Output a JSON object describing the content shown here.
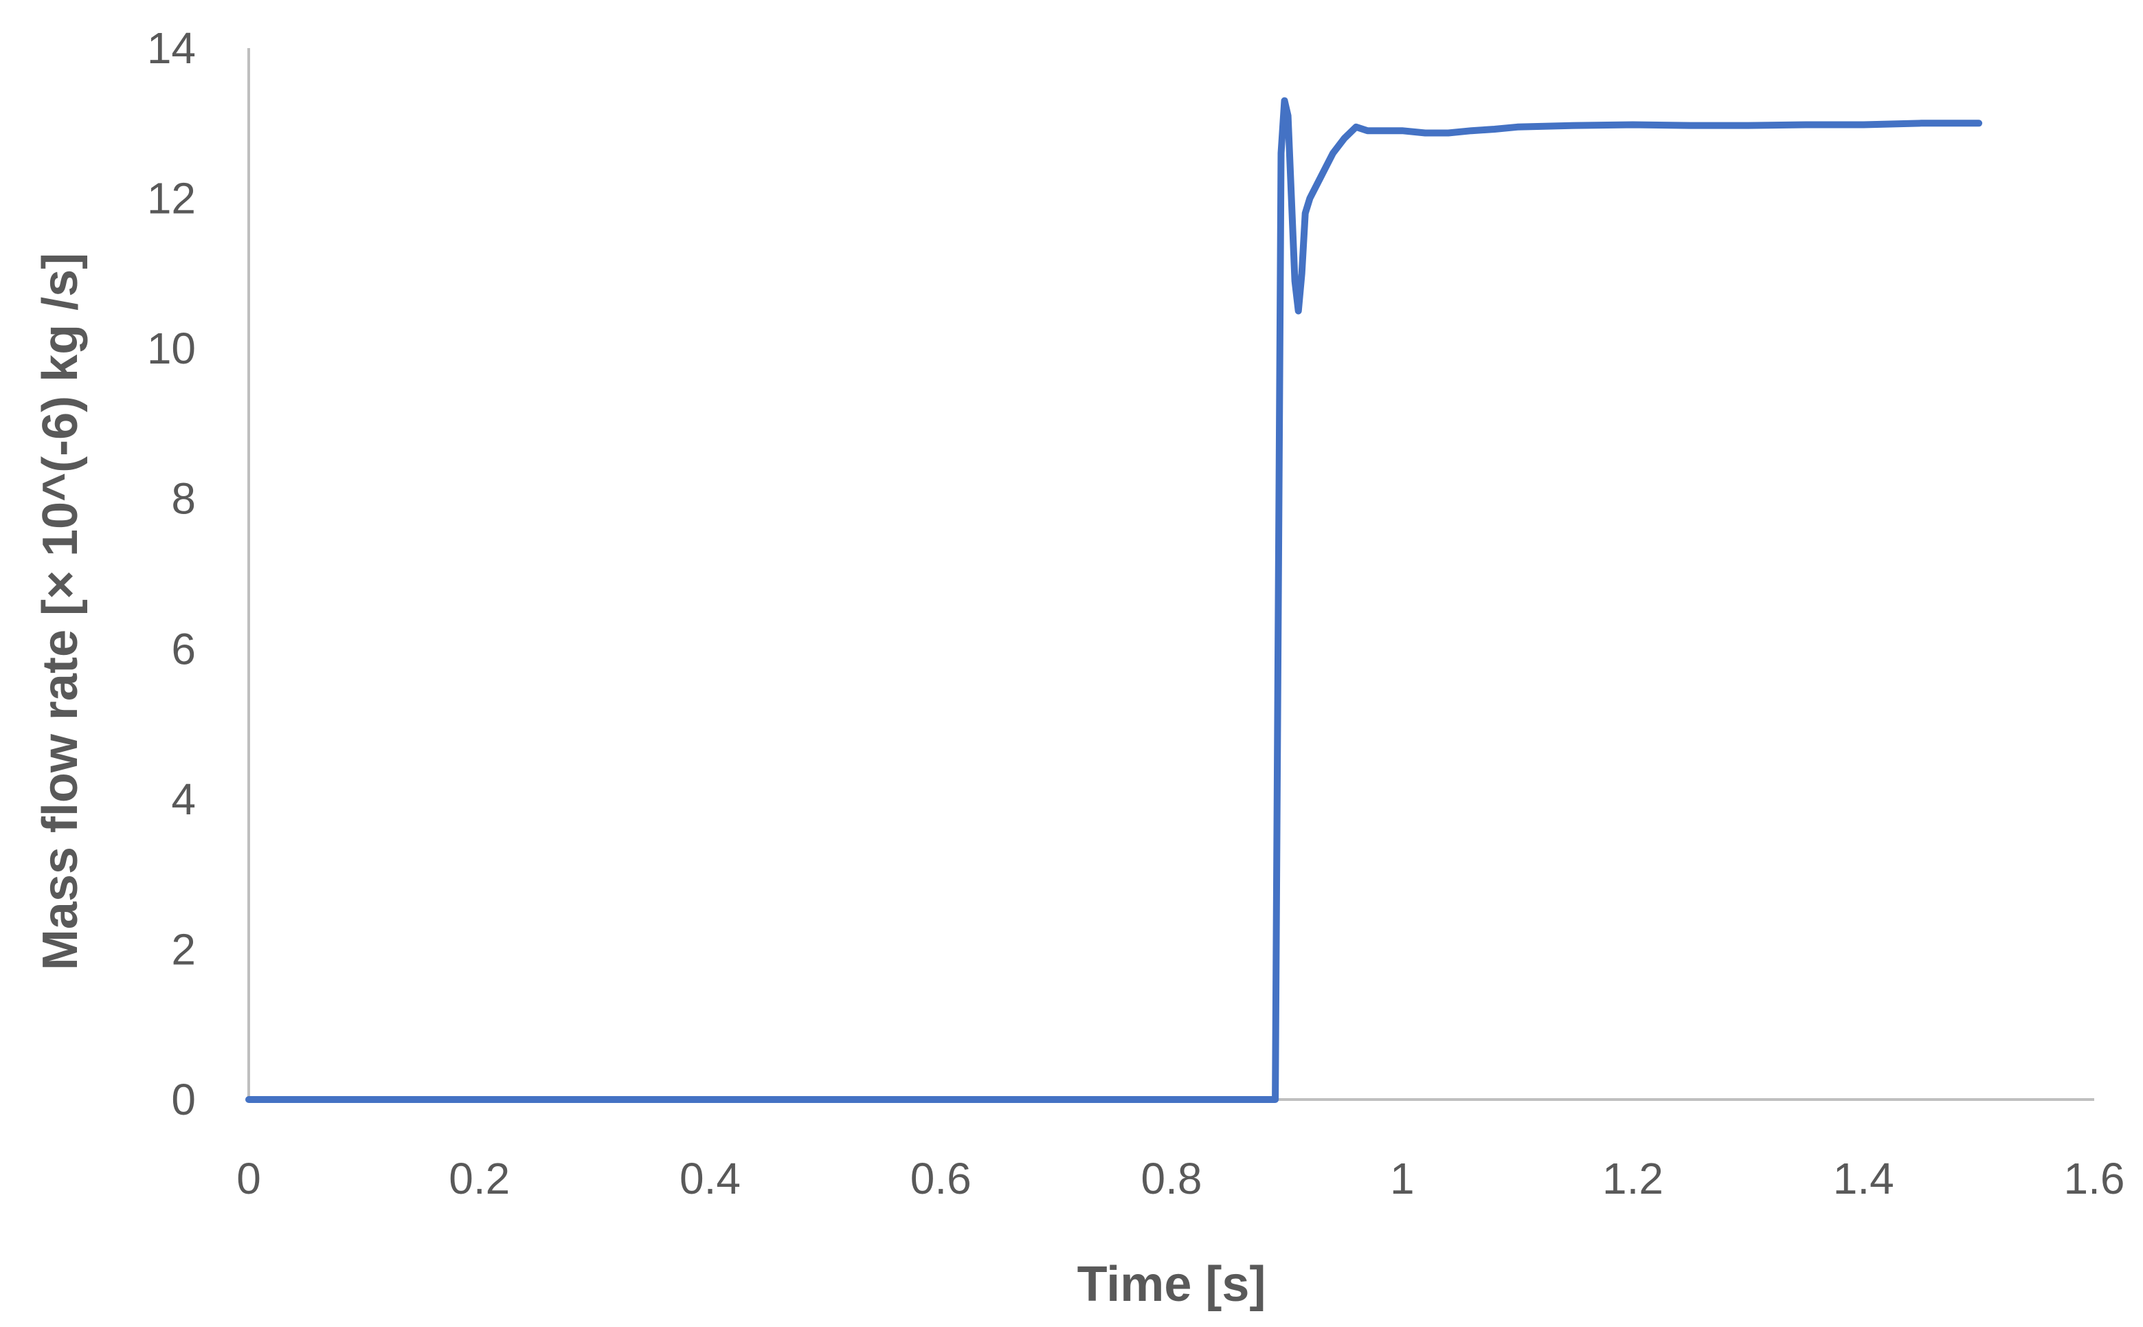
{
  "chart_data": {
    "type": "line",
    "title": "",
    "xlabel": "Time [s]",
    "ylabel": "Mass flow rate [× 10^(-6) kg /s]",
    "xlim": [
      0,
      1.6
    ],
    "ylim": [
      0,
      14
    ],
    "x_ticks": [
      "0",
      "0.2",
      "0.4",
      "0.6",
      "0.8",
      "1",
      "1.2",
      "1.4",
      "1.6"
    ],
    "y_ticks": [
      "0",
      "2",
      "4",
      "6",
      "8",
      "10",
      "12",
      "14"
    ],
    "grid": false,
    "legend": "none",
    "colors": {
      "line": "#4472C4",
      "axis": "#BFBFBF",
      "text": "#595959"
    },
    "series": [
      {
        "x": [
          0,
          0.1,
          0.2,
          0.3,
          0.4,
          0.5,
          0.6,
          0.7,
          0.8,
          0.885,
          0.89,
          0.895,
          0.898,
          0.901,
          0.904,
          0.907,
          0.91,
          0.913,
          0.916,
          0.92,
          0.93,
          0.94,
          0.95,
          0.96,
          0.97,
          0.98,
          1.0,
          1.02,
          1.04,
          1.06,
          1.08,
          1.1,
          1.15,
          1.2,
          1.25,
          1.3,
          1.35,
          1.4,
          1.45,
          1.5
        ],
        "values": [
          0,
          0,
          0,
          0,
          0,
          0,
          0,
          0,
          0,
          0,
          0,
          12.6,
          13.3,
          13.1,
          12.0,
          10.9,
          10.5,
          11.0,
          11.8,
          12.0,
          12.3,
          12.6,
          12.8,
          12.95,
          12.9,
          12.9,
          12.9,
          12.87,
          12.87,
          12.9,
          12.92,
          12.95,
          12.97,
          12.98,
          12.97,
          12.97,
          12.98,
          12.98,
          13.0,
          13.0
        ]
      }
    ]
  }
}
